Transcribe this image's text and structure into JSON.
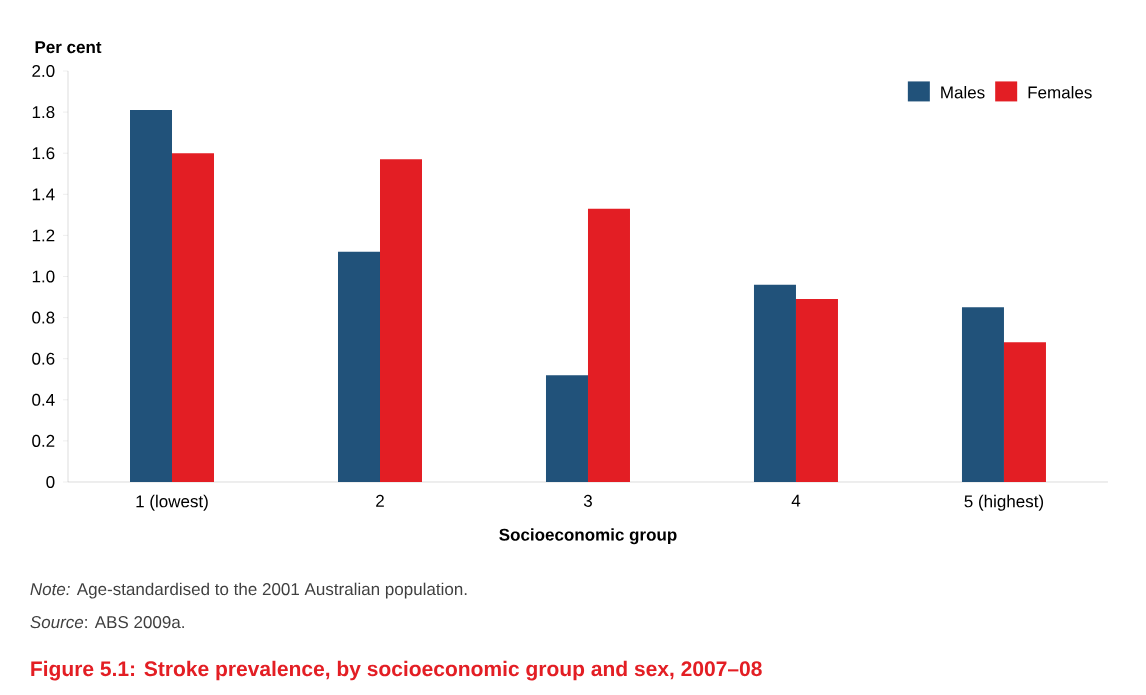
{
  "chart_data": {
    "type": "bar",
    "title": "Figure 5.1: Stroke prevalence, by socioeconomic group and sex, 2007–08",
    "xlabel": "Socioeconomic group",
    "ylabel": "Per cent",
    "categories": [
      "1 (lowest)",
      "2",
      "3",
      "4",
      "5 (highest)"
    ],
    "series": [
      {
        "name": "Males",
        "color": "#21527a",
        "values": [
          1.81,
          1.12,
          0.52,
          0.96,
          0.85
        ]
      },
      {
        "name": "Females",
        "color": "#e31e24",
        "values": [
          1.6,
          1.57,
          1.33,
          0.89,
          0.68
        ]
      }
    ],
    "ylim": [
      0,
      2.0
    ],
    "yticks": [
      0,
      {
        "value": 0.2,
        "label": "0.2"
      },
      {
        "value": 0.4,
        "label": "0.4"
      },
      {
        "value": 0.6,
        "label": "0.6"
      },
      {
        "value": 0.8,
        "label": "0.8"
      },
      {
        "value": 1.0,
        "label": "1.0"
      },
      {
        "value": 1.2,
        "label": "1.2"
      },
      {
        "value": 1.4,
        "label": "1.4"
      },
      {
        "value": 1.6,
        "label": "1.6"
      },
      {
        "value": 1.8,
        "label": "1.8"
      },
      {
        "value": 2.0,
        "label": "2.0"
      }
    ],
    "grid": false,
    "legend": "top right",
    "annotations": [
      "*Note:* Age-standardised to the 2001 Australian population.",
      "*Source*: ABS 2009a."
    ]
  }
}
